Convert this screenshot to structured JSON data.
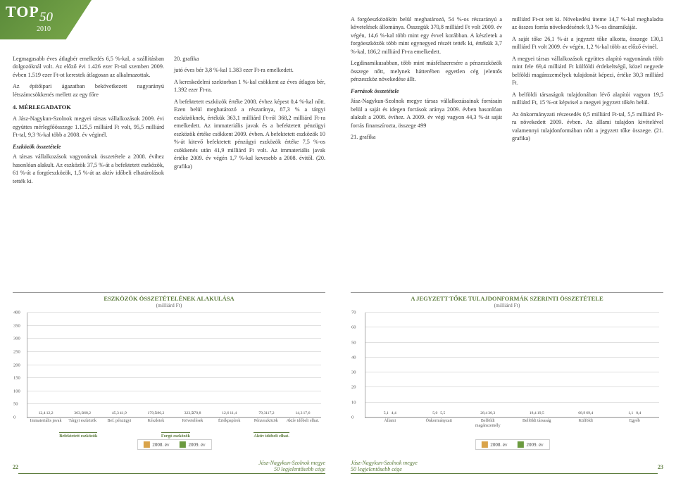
{
  "logo": {
    "top": "TOP",
    "fifty": "50",
    "year": "2010"
  },
  "leftText": {
    "p1": "Legmagasabb éves átlagbér emelkedés 6,5 %-kal, a szállításban dolgozóknál volt. Az előző évi 1.426 ezer Ft-tal szemben 2009. évben 1.519 ezer Ft-ot kerestek átlagosan az alkalmazottak.",
    "p2": "Az építőipari ágazatban bekövetkezett nagyarányú létszámcsökkenés mellett az egy főre",
    "sec4": "4. MÉRLEGADATOK",
    "p3": "A Jász-Nagykun-Szolnok megyei társas vállalkozások 2009. évi együttes mérlegfőösszege 1.125,5 milliárd Ft volt, 95,5 milliárd Ft-tal, 9,3 %-kal több a 2008. év véginél.",
    "sub1": "Eszközök összetétele",
    "p4": "A társas vállalkozások vagyonának összetétele a 2008. évihez hasonlóan alakult. Az eszközök 37,5 %-át a befektetett eszközök, 61 %-át a forgóeszközök, 1,5 %-át az aktív időbeli elhatárolások tették ki.",
    "ref1": "20. grafika",
    "p5": "jutó éves bér 3,8 %-kal 1.383 ezer Ft-ra emelkedett.",
    "p6": "A kereskedelmi szektorban 1 %-kal csökkent az éves átlagos bér, 1.392 ezer Ft-ra.",
    "p7": "A befektetett eszközök értéke 2008. évhez képest 0,4 %-kal nőtt. Ezen belül meghatározó a részaránya, 87,3 % a tárgyi eszközöknek, értékük 363,1 milliárd Ft-ról 368,2 milliárd Ft-ra emelkedett. Az immateriális javak és a befektetett pénzügyi eszközök értéke csökkent 2009. évben. A befektetett eszközök 10 %-át kitevő befektetett pénzügyi eszközök értéke 7,5 %-os csökkenés után 41,9 milliárd Ft volt. Az immateriális javak értéke 2009. év végén 1,7 %-kal kevesebb a 2008. évitől. (20. grafika)"
  },
  "rightText": {
    "p1": "A forgóeszközökön belül meghatározó, 54 %-os részarányú a követelések állománya. Összegük 370,8 milliárd Ft volt 2009. év végén, 14,6 %-kal több mint egy évvel korábban. A készletek a forgóeszközök több mint egynegyed részét tették ki, értékük 3,7 %-kal, 186,2 milliárd Ft-ra emelkedett.",
    "p2": "Legdinamikusabban, több mint másfélszeresére a pénzeszközök összege nőtt, melynek hátterében egyetlen cég jelentős pénzeszköz növekedése állt.",
    "sub1": "Források összetétele",
    "p3": "Jász-Nagykun-Szolnok megye társas vállalkozásainak forrásain belül a saját és idegen források aránya 2009. évben hasonlóan alakult a 2008. évihez. A 2009. év végi vagyon 44,3 %-át saját forrás finanszírozta, összege 499",
    "ref1": "21. grafika",
    "p4": "milliárd Ft-ot tett ki. Növekedési üteme 14,7 %-kal meghaladta az összes forrás növekedésének 9,3 %-os dinamikáját.",
    "p5": "A saját tőke 26,1 %-át a jegyzett tőke alkotta, összege 130,1 milliárd Ft volt 2009. év végén, 1,2 %-kal több az előző évinél.",
    "p6": "A megyei társas vállalkozások együttes alapító vagyonának több mint fele 69,4 milliárd Ft külföldi érdekeltségű, közel negyede belföldi magánszemélyek tulajdonát képezi, értéke 30,3 milliárd Ft.",
    "p7": "A belföldi társaságok tulajdonában lévő alapítói vagyon 19,5 milliárd Ft, 15 %-ot képvisel a megyei jegyzett tőkén belül.",
    "p8": "Az önkormányzati részesedés 0,5 milliárd Ft-tal, 5,5 milliárd Ft-ra növekedett 2009. évben. Az állami tulajdon kivételével valamennyi tulajdonformában nőtt a jegyzett tőke összege. (21. grafika)"
  },
  "chartLeft": {
    "title": "ESZKÖZÖK ÖSSZETÉTELÉNEK ALAKULÁSA",
    "subtitle": "(milliárd Ft)",
    "yticks": [
      0,
      50,
      100,
      150,
      200,
      250,
      300,
      350,
      400
    ],
    "ymax": 400,
    "colors": {
      "y2008": "#d9a34a",
      "y2009": "#6b9a3f"
    },
    "groups": [
      {
        "label": "Immateriális javak",
        "v": [
          12.4,
          12.2
        ]
      },
      {
        "label": "Tárgyi eszközök",
        "v": [
          363.1,
          368.2
        ]
      },
      {
        "label": "Bef. pénzügyi",
        "v": [
          45.3,
          41.9
        ]
      },
      {
        "label": "Készletek",
        "v": [
          179.5,
          186.2
        ]
      },
      {
        "label": "Követelések",
        "v": [
          323.5,
          370.8
        ]
      },
      {
        "label": "Értékpapírok",
        "v": [
          12.6,
          11.4
        ]
      },
      {
        "label": "Pénzeszközök",
        "v": [
          79.3,
          117.2
        ]
      },
      {
        "label": "Aktív időbeli elhat.",
        "v": [
          14.3,
          17.6
        ]
      }
    ],
    "sections": [
      "Befektetett eszközök",
      "Forgó eszközök",
      "Aktív időbeli elhat."
    ],
    "legend": {
      "a": "2008. év",
      "b": "2009. év"
    }
  },
  "chartRight": {
    "title": "A JEGYZETT TŐKE TULAJDONFORMÁK SZERINTI ÖSSZETÉTELE",
    "subtitle": "(milliárd Ft)",
    "yticks": [
      0,
      10,
      20,
      30,
      40,
      50,
      60,
      70
    ],
    "ymax": 70,
    "colors": {
      "y2008": "#d9a34a",
      "y2009": "#6b9a3f"
    },
    "groups": [
      {
        "label": "Állami",
        "v": [
          5.1,
          4.4
        ]
      },
      {
        "label": "Önkormányzati",
        "v": [
          5.0,
          5.5
        ]
      },
      {
        "label": "Belföldi magánszemély",
        "v": [
          28.4,
          30.3
        ]
      },
      {
        "label": "Belföldi társaság",
        "v": [
          18.4,
          19.5
        ]
      },
      {
        "label": "Külföldi",
        "v": [
          68.9,
          69.4
        ]
      },
      {
        "label": "Egyéb",
        "v": [
          1.1,
          0.4
        ]
      }
    ],
    "legend": {
      "a": "2008. év",
      "b": "2009. év"
    }
  },
  "footer": {
    "leftPage": "22",
    "rightPage": "23",
    "text1": "Jász-Nagykun-Szolnok megye",
    "text2": "50 legjelentősebb cége"
  }
}
